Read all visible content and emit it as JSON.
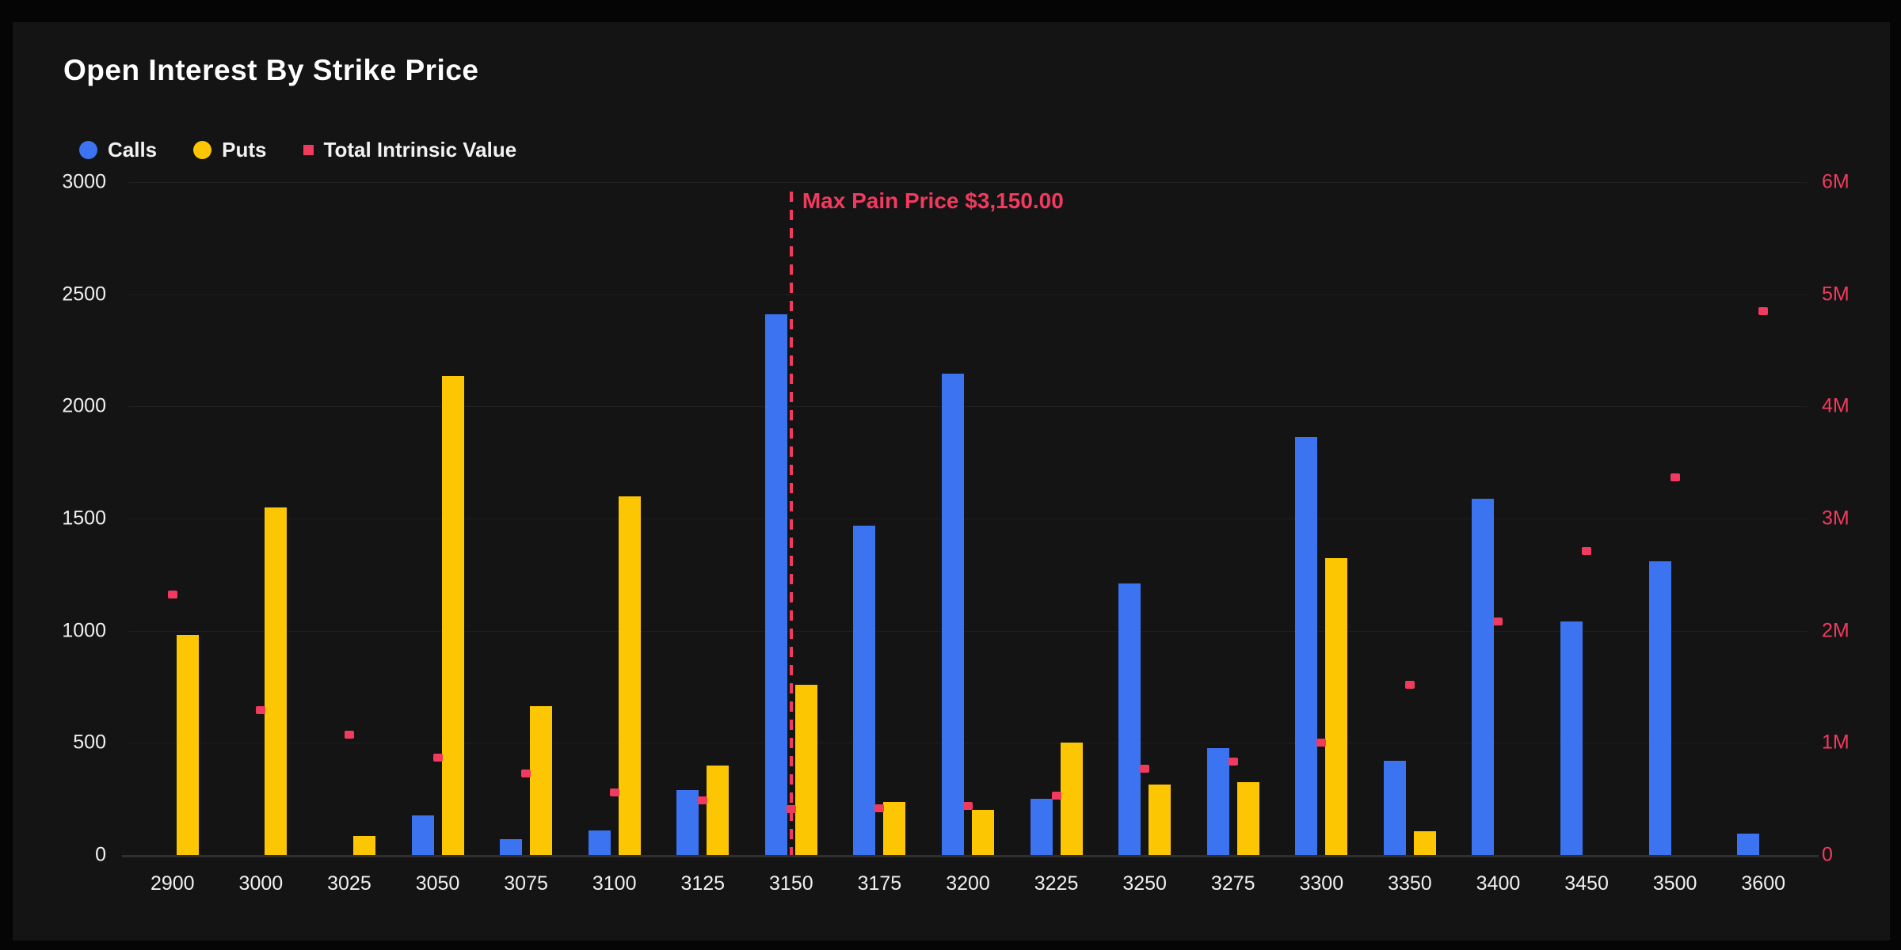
{
  "title": "Open Interest By Strike Price",
  "legend": {
    "items": [
      {
        "label": "Calls",
        "marker": "circle",
        "color": "#3b73f1"
      },
      {
        "label": "Puts",
        "marker": "circle",
        "color": "#fcc702"
      },
      {
        "label": "Total Intrinsic Value",
        "marker": "square",
        "color": "#f23a5f"
      }
    ]
  },
  "annotation": {
    "max_pain_label": "Max Pain Price $3,150.00",
    "max_pain_strike": "3150"
  },
  "colors": {
    "background": "#141414",
    "calls": "#3b73f1",
    "puts": "#fcc702",
    "intrinsic": "#f23a5f",
    "text": "#f0f0f0",
    "gridline": "#1f1f1f",
    "axis_line": "#2f2f2f"
  },
  "chart_data": {
    "type": "bar",
    "subtype": "grouped bars + scatter overlay, dual y-axis",
    "categories": [
      "2900",
      "3000",
      "3025",
      "3050",
      "3075",
      "3100",
      "3125",
      "3150",
      "3175",
      "3200",
      "3225",
      "3250",
      "3275",
      "3300",
      "3350",
      "3400",
      "3450",
      "3500",
      "3600"
    ],
    "series": [
      {
        "name": "Calls",
        "type": "bar",
        "axis": "left",
        "color": "#3b73f1",
        "values": [
          0,
          0,
          0,
          175,
          70,
          110,
          290,
          2410,
          1470,
          2145,
          250,
          1210,
          475,
          1865,
          420,
          1590,
          1040,
          1310,
          95
        ]
      },
      {
        "name": "Puts",
        "type": "bar",
        "axis": "left",
        "color": "#fcc702",
        "values": [
          980,
          1550,
          85,
          2135,
          665,
          1600,
          400,
          760,
          235,
          200,
          500,
          315,
          325,
          1325,
          105,
          0,
          0,
          0,
          0
        ]
      },
      {
        "name": "Total Intrinsic Value",
        "type": "scatter",
        "axis": "right",
        "color": "#f23a5f",
        "values": [
          2320000,
          1290000,
          1070000,
          870000,
          730000,
          560000,
          490000,
          410000,
          420000,
          440000,
          530000,
          770000,
          830000,
          1000000,
          1520000,
          2080000,
          2710000,
          3370000,
          4850000
        ]
      }
    ],
    "left_axis": {
      "min": 0,
      "max": 3000,
      "ticks": [
        0,
        500,
        1000,
        1500,
        2000,
        2500,
        3000
      ],
      "text_color": "#f0f0f0"
    },
    "right_axis": {
      "min": 0,
      "max": 6000000,
      "ticks": [
        0,
        1000000,
        2000000,
        3000000,
        4000000,
        5000000,
        6000000
      ],
      "tick_labels": [
        "0",
        "1M",
        "2M",
        "3M",
        "4M",
        "5M",
        "6M"
      ],
      "text_color": "#f23a5f"
    },
    "xlabel": "",
    "ylabel": "",
    "grid": true,
    "legend_position": "top-left",
    "annotations": [
      {
        "kind": "vline",
        "at_category": "3150",
        "style": "dashed",
        "color": "#f23a5f",
        "label": "Max Pain Price $3,150.00"
      }
    ]
  }
}
